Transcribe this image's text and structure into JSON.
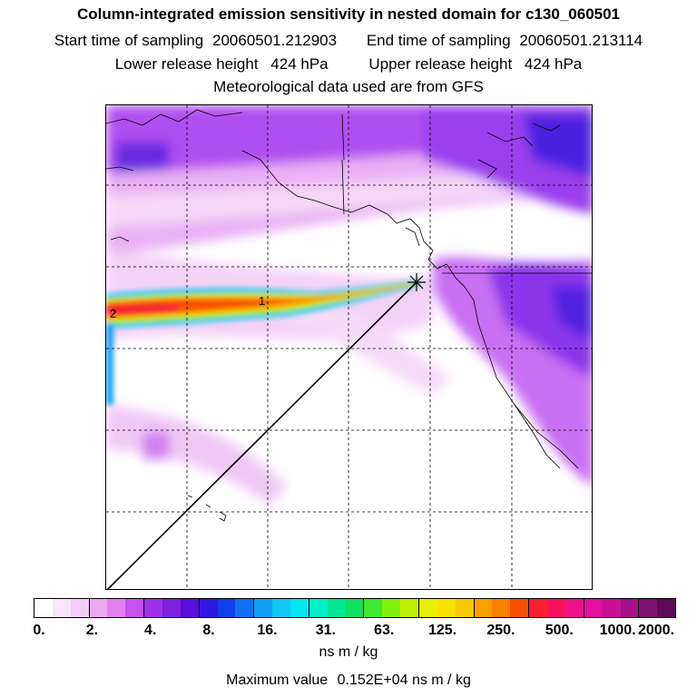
{
  "header": {
    "title": "Column-integrated emission sensitivity in nested domain for c130_060501",
    "start_label": "Start time of sampling",
    "start_value": "20060501.212903",
    "end_label": "End time of sampling",
    "end_value": "20060501.213114",
    "lower_label": "Lower release height",
    "lower_value": "424 hPa",
    "upper_label": "Upper release height",
    "upper_value": "424 hPa",
    "met_line": "Meteorological data used are from GFS"
  },
  "map": {
    "plume_labels": [
      "1",
      "2"
    ],
    "release_marker": "release-point-cross"
  },
  "colorbar": {
    "tick_labels": [
      "0.",
      "2.",
      "4.",
      "8.",
      "16.",
      "31.",
      "63.",
      "125.",
      "250.",
      "500.",
      "1000.",
      "2000."
    ],
    "colors": [
      "#ffffff",
      "#fae6fa",
      "#f5ccf5",
      "#eeaaf0",
      "#e080f0",
      "#c850f0",
      "#a030e8",
      "#8020e0",
      "#5a10d8",
      "#3018e0",
      "#1040e8",
      "#1070f0",
      "#10a0f5",
      "#10c8f5",
      "#00e8f0",
      "#00f0c8",
      "#00e890",
      "#10e060",
      "#40e830",
      "#80f010",
      "#c0f000",
      "#e8f000",
      "#f8e000",
      "#f8c800",
      "#f8a000",
      "#f88000",
      "#f85000",
      "#f82030",
      "#f81060",
      "#f0108a",
      "#e010a0",
      "#c81098",
      "#a81088",
      "#801070",
      "#600858"
    ],
    "units": "ns m / kg",
    "max_label": "Maximum value",
    "max_value": "0.152E+04 ns m / kg"
  }
}
